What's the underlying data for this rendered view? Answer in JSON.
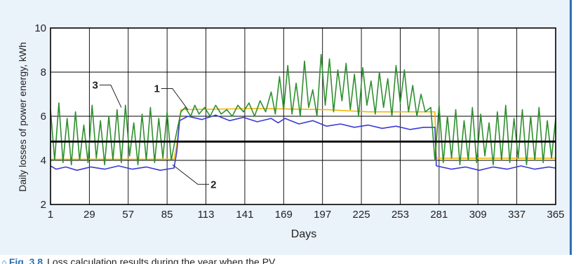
{
  "chart_data": {
    "type": "line",
    "title": "",
    "xlabel": "Days",
    "ylabel": "Daily losses of power energy, kWh",
    "xlim": [
      1,
      365
    ],
    "ylim": [
      2,
      10
    ],
    "xticks": [
      1,
      29,
      57,
      85,
      113,
      141,
      169,
      197,
      225,
      253,
      281,
      309,
      337,
      365
    ],
    "yticks": [
      2,
      4,
      6,
      8,
      10
    ],
    "grid": true,
    "legend": "none",
    "series": [
      {
        "label": "1",
        "color": "#f2b705",
        "points": [
          [
            1,
            4.05
          ],
          [
            90,
            4.05
          ],
          [
            92,
            4.7
          ],
          [
            95,
            6.3
          ],
          [
            150,
            6.35
          ],
          [
            200,
            6.3
          ],
          [
            230,
            6.2
          ],
          [
            278,
            6.2
          ],
          [
            279,
            4.1
          ],
          [
            365,
            4.1
          ]
        ]
      },
      {
        "label": "2",
        "color": "#3a3ad6",
        "points": [
          [
            1,
            3.75
          ],
          [
            5,
            3.6
          ],
          [
            12,
            3.7
          ],
          [
            20,
            3.55
          ],
          [
            30,
            3.7
          ],
          [
            40,
            3.6
          ],
          [
            50,
            3.75
          ],
          [
            60,
            3.6
          ],
          [
            70,
            3.7
          ],
          [
            80,
            3.55
          ],
          [
            90,
            3.65
          ],
          [
            92,
            4.4
          ],
          [
            94,
            5.8
          ],
          [
            100,
            6.0
          ],
          [
            110,
            5.85
          ],
          [
            120,
            6.05
          ],
          [
            130,
            5.8
          ],
          [
            140,
            5.95
          ],
          [
            150,
            5.75
          ],
          [
            160,
            5.9
          ],
          [
            165,
            5.7
          ],
          [
            170,
            5.9
          ],
          [
            180,
            5.65
          ],
          [
            190,
            5.8
          ],
          [
            200,
            5.55
          ],
          [
            210,
            5.65
          ],
          [
            220,
            5.5
          ],
          [
            230,
            5.6
          ],
          [
            240,
            5.45
          ],
          [
            250,
            5.55
          ],
          [
            260,
            5.4
          ],
          [
            270,
            5.5
          ],
          [
            278,
            5.5
          ],
          [
            279,
            3.75
          ],
          [
            290,
            3.6
          ],
          [
            300,
            3.7
          ],
          [
            310,
            3.55
          ],
          [
            320,
            3.7
          ],
          [
            330,
            3.6
          ],
          [
            340,
            3.75
          ],
          [
            350,
            3.6
          ],
          [
            360,
            3.7
          ],
          [
            365,
            3.65
          ]
        ]
      },
      {
        "label": "3",
        "color": "#2f8f2f",
        "points": [
          [
            1,
            6.3
          ],
          [
            4,
            4.0
          ],
          [
            7,
            6.6
          ],
          [
            10,
            3.9
          ],
          [
            13,
            5.9
          ],
          [
            16,
            3.8
          ],
          [
            19,
            6.2
          ],
          [
            22,
            4.0
          ],
          [
            25,
            5.6
          ],
          [
            28,
            3.9
          ],
          [
            31,
            6.5
          ],
          [
            34,
            4.1
          ],
          [
            37,
            5.8
          ],
          [
            40,
            3.8
          ],
          [
            43,
            6.0
          ],
          [
            46,
            4.0
          ],
          [
            49,
            6.3
          ],
          [
            52,
            3.9
          ],
          [
            55,
            6.5
          ],
          [
            58,
            4.2
          ],
          [
            61,
            5.7
          ],
          [
            64,
            3.8
          ],
          [
            67,
            6.1
          ],
          [
            70,
            4.0
          ],
          [
            73,
            6.4
          ],
          [
            76,
            3.9
          ],
          [
            79,
            5.9
          ],
          [
            82,
            4.1
          ],
          [
            85,
            6.2
          ],
          [
            88,
            4.0
          ],
          [
            91,
            5.0
          ],
          [
            95,
            6.2
          ],
          [
            98,
            6.4
          ],
          [
            102,
            6.0
          ],
          [
            105,
            6.5
          ],
          [
            108,
            6.1
          ],
          [
            112,
            6.4
          ],
          [
            116,
            6.0
          ],
          [
            120,
            6.5
          ],
          [
            124,
            6.1
          ],
          [
            128,
            6.3
          ],
          [
            132,
            6.0
          ],
          [
            136,
            6.5
          ],
          [
            140,
            6.2
          ],
          [
            144,
            6.6
          ],
          [
            148,
            6.0
          ],
          [
            152,
            6.7
          ],
          [
            156,
            6.2
          ],
          [
            160,
            7.1
          ],
          [
            163,
            6.1
          ],
          [
            166,
            7.8
          ],
          [
            169,
            6.3
          ],
          [
            172,
            8.3
          ],
          [
            175,
            6.1
          ],
          [
            178,
            7.5
          ],
          [
            181,
            6.0
          ],
          [
            184,
            8.5
          ],
          [
            187,
            6.4
          ],
          [
            190,
            7.2
          ],
          [
            193,
            6.0
          ],
          [
            196,
            8.8
          ],
          [
            199,
            6.5
          ],
          [
            202,
            8.6
          ],
          [
            205,
            6.2
          ],
          [
            208,
            8.1
          ],
          [
            211,
            6.7
          ],
          [
            214,
            8.4
          ],
          [
            217,
            6.3
          ],
          [
            220,
            7.9
          ],
          [
            223,
            6.0
          ],
          [
            226,
            8.2
          ],
          [
            229,
            6.5
          ],
          [
            232,
            7.6
          ],
          [
            235,
            6.1
          ],
          [
            238,
            8.0
          ],
          [
            241,
            6.4
          ],
          [
            244,
            7.7
          ],
          [
            247,
            6.0
          ],
          [
            250,
            8.3
          ],
          [
            253,
            6.6
          ],
          [
            256,
            8.1
          ],
          [
            259,
            6.2
          ],
          [
            262,
            7.4
          ],
          [
            265,
            6.0
          ],
          [
            268,
            7.0
          ],
          [
            271,
            6.2
          ],
          [
            275,
            6.4
          ],
          [
            278,
            4.0
          ],
          [
            281,
            6.5
          ],
          [
            284,
            3.9
          ],
          [
            287,
            6.0
          ],
          [
            290,
            4.1
          ],
          [
            293,
            6.3
          ],
          [
            296,
            3.8
          ],
          [
            299,
            5.8
          ],
          [
            302,
            4.0
          ],
          [
            305,
            6.4
          ],
          [
            308,
            3.9
          ],
          [
            311,
            6.1
          ],
          [
            314,
            4.2
          ],
          [
            317,
            5.7
          ],
          [
            320,
            3.8
          ],
          [
            323,
            6.2
          ],
          [
            326,
            4.0
          ],
          [
            329,
            6.5
          ],
          [
            332,
            3.9
          ],
          [
            335,
            5.9
          ],
          [
            338,
            4.1
          ],
          [
            341,
            6.3
          ],
          [
            344,
            3.8
          ],
          [
            347,
            6.0
          ],
          [
            350,
            4.0
          ],
          [
            353,
            6.4
          ],
          [
            356,
            3.9
          ],
          [
            359,
            5.8
          ],
          [
            362,
            4.1
          ],
          [
            365,
            5.9
          ]
        ]
      },
      {
        "label": "",
        "color": "#000000",
        "points": [
          [
            1,
            4.85
          ],
          [
            365,
            4.85
          ]
        ]
      }
    ],
    "annotations": [
      {
        "text": "1",
        "target": [
          100,
          6.3
        ]
      },
      {
        "text": "2",
        "target": [
          89,
          3.8
        ]
      },
      {
        "text": "3",
        "target": [
          52,
          6.4
        ]
      }
    ]
  },
  "caption": {
    "label": "Fig. 3.8",
    "text": "Loss calculation results during the year when the PV"
  },
  "colors": {
    "panel_bg": "#eaf2fa",
    "accent": "#2c6fb0"
  }
}
